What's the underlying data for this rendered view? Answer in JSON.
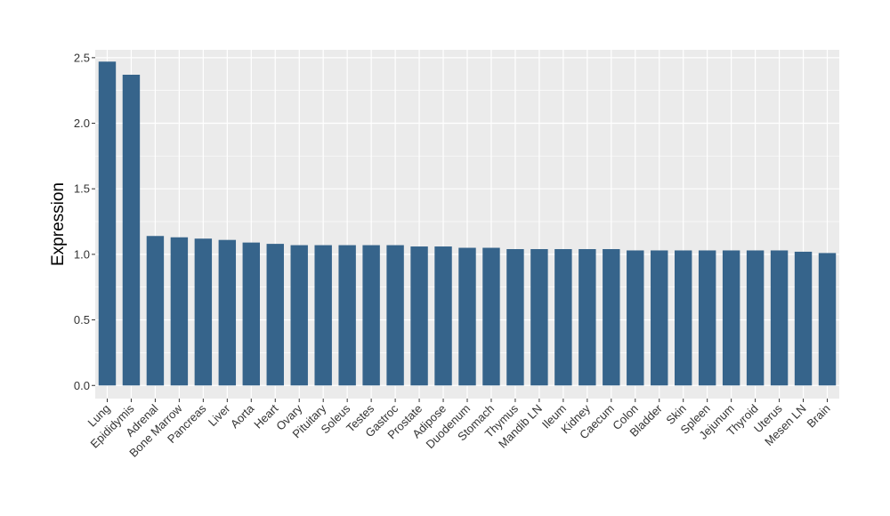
{
  "chart_data": {
    "type": "bar",
    "title": "",
    "xlabel": "",
    "ylabel": "Expression",
    "ylim": [
      -0.1,
      2.56
    ],
    "yticks": [
      0.0,
      0.5,
      1.0,
      1.5,
      2.0,
      2.5
    ],
    "ytick_labels": [
      "0.0",
      "0.5",
      "1.0",
      "1.5",
      "2.0",
      "2.5"
    ],
    "grid": true,
    "legend": "none",
    "colors": {
      "bar": "#36648b",
      "panel": "#ebebeb",
      "grid": "#ffffff"
    },
    "categories": [
      "Lung",
      "Epididymis",
      "Adrenal",
      "Bone Marrow",
      "Pancreas",
      "Liver",
      "Aorta",
      "Heart",
      "Ovary",
      "Pituitary",
      "Soleus",
      "Testes",
      "Gastroc",
      "Prostate",
      "Adipose",
      "Duodenum",
      "Stomach",
      "Thymus",
      "Mandib LN",
      "Ileum",
      "Kidney",
      "Caecum",
      "Colon",
      "Bladder",
      "Skin",
      "Spleen",
      "Jejunum",
      "Thyroid",
      "Uterus",
      "Mesen LN",
      "Brain"
    ],
    "values": [
      2.47,
      2.37,
      1.14,
      1.13,
      1.12,
      1.11,
      1.09,
      1.08,
      1.07,
      1.07,
      1.07,
      1.07,
      1.07,
      1.06,
      1.06,
      1.05,
      1.05,
      1.04,
      1.04,
      1.04,
      1.04,
      1.04,
      1.03,
      1.03,
      1.03,
      1.03,
      1.03,
      1.03,
      1.03,
      1.02,
      1.01
    ]
  }
}
